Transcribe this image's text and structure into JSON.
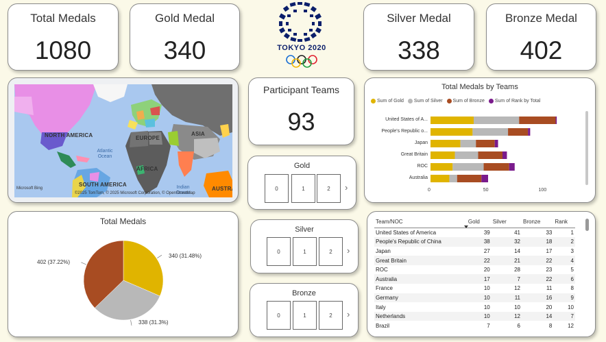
{
  "kpis": {
    "total": {
      "title": "Total Medals",
      "value": "1080"
    },
    "gold": {
      "title": "Gold Medal",
      "value": "340"
    },
    "silver": {
      "title": "Silver Medal",
      "value": "338"
    },
    "bronze": {
      "title": "Bronze Medal",
      "value": "402"
    }
  },
  "logo": {
    "text": "TOKYO 2020",
    "icon": "tokyo-2020-emblem",
    "color": "#0b1f6b"
  },
  "map": {
    "labels": {
      "north_america": "NORTH AMERICA",
      "europe": "EUROPE",
      "asia": "ASIA",
      "africa": "AFRICA",
      "south_america": "SOUTH AMERICA",
      "australia": "AUSTRA",
      "atlantic": "Atlantic Ocean",
      "indian": "Indian Ocean"
    },
    "brand": "Microsoft Bing",
    "copyright": "©2025 TomTom, © 2025 Microsoft Corporation, © OpenStreetMap"
  },
  "participants": {
    "title": "Participant Teams",
    "value": "93"
  },
  "slicers": {
    "gold": {
      "title": "Gold",
      "options": [
        "0",
        "1",
        "2"
      ]
    },
    "silver": {
      "title": "Silver",
      "options": [
        "0",
        "1",
        "2"
      ]
    },
    "bronze": {
      "title": "Bronze",
      "options": [
        "0",
        "1",
        "2"
      ]
    }
  },
  "colors": {
    "gold": "#e0b400",
    "silver": "#b8b8b8",
    "bronze": "#a84c22",
    "rank": "#7a1b8c"
  },
  "chart_data": [
    {
      "type": "bar",
      "title": "Total Medals by Teams",
      "orientation": "horizontal",
      "stacked": true,
      "categories": [
        "United States of A...",
        "People's Republic o...",
        "Japan",
        "Great Britain",
        "ROC",
        "Australia"
      ],
      "series": [
        {
          "name": "Sum of Gold",
          "values": [
            39,
            38,
            27,
            22,
            20,
            17
          ]
        },
        {
          "name": "Sum of Silver",
          "values": [
            41,
            32,
            14,
            21,
            28,
            7
          ]
        },
        {
          "name": "Sum of Bronze",
          "values": [
            33,
            18,
            17,
            22,
            23,
            22
          ]
        },
        {
          "name": "Sum of Rank by Total",
          "values": [
            1,
            2,
            3,
            4,
            5,
            6
          ]
        }
      ],
      "xticks": [
        "0",
        "50",
        "100"
      ],
      "xlim": [
        0,
        130
      ],
      "legend": "top"
    },
    {
      "type": "pie",
      "title": "Total Medals",
      "categories": [
        "Gold",
        "Silver",
        "Bronze"
      ],
      "values": [
        340,
        338,
        402
      ],
      "labels": [
        "340 (31.48%)",
        "338 (31.3%)",
        "402 (37.22%)"
      ]
    }
  ],
  "table": {
    "headers": [
      "Team/NOC",
      "Gold",
      "Silver",
      "Bronze",
      "Rank"
    ],
    "rows": [
      [
        "United States of America",
        "39",
        "41",
        "33",
        "1"
      ],
      [
        "People's Republic of China",
        "38",
        "32",
        "18",
        "2"
      ],
      [
        "Japan",
        "27",
        "14",
        "17",
        "3"
      ],
      [
        "Great Britain",
        "22",
        "21",
        "22",
        "4"
      ],
      [
        "ROC",
        "20",
        "28",
        "23",
        "5"
      ],
      [
        "Australia",
        "17",
        "7",
        "22",
        "6"
      ],
      [
        "France",
        "10",
        "12",
        "11",
        "8"
      ],
      [
        "Germany",
        "10",
        "11",
        "16",
        "9"
      ],
      [
        "Italy",
        "10",
        "10",
        "20",
        "10"
      ],
      [
        "Netherlands",
        "10",
        "12",
        "14",
        "7"
      ],
      [
        "Brazil",
        "7",
        "6",
        "8",
        "12"
      ]
    ]
  }
}
